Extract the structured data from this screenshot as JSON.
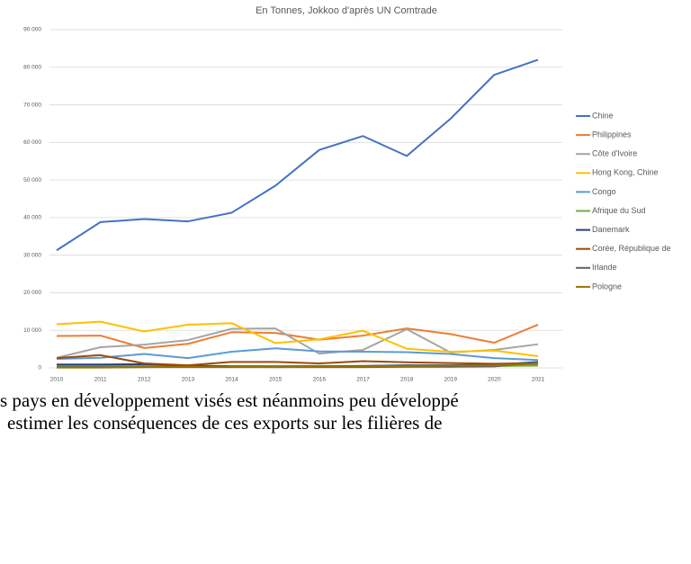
{
  "chart_data": {
    "type": "line",
    "subtitle": "En Tonnes, Jokkoo d'après UN Comtrade",
    "categories": [
      "2010",
      "2011",
      "2012",
      "2013",
      "2014",
      "2015",
      "2016",
      "2017",
      "2018",
      "2019",
      "2020",
      "2021"
    ],
    "series": [
      {
        "name": "Chine",
        "color": "#4472c4",
        "values": [
          31300,
          38800,
          39600,
          39000,
          41300,
          48500,
          58000,
          61700,
          56400,
          66300,
          78000,
          82000
        ]
      },
      {
        "name": "Philippines",
        "color": "#ed7d31",
        "values": [
          8500,
          8600,
          5300,
          6400,
          9500,
          9300,
          7500,
          8600,
          10500,
          9000,
          6700,
          11500
        ]
      },
      {
        "name": "Côte d'Ivoire",
        "color": "#a5a5a5",
        "values": [
          2700,
          5500,
          6200,
          7400,
          10400,
          10500,
          3800,
          4800,
          10300,
          4100,
          4800,
          6300
        ]
      },
      {
        "name": "Hong Kong, Chine",
        "color": "#ffc000",
        "values": [
          11600,
          12300,
          9700,
          11500,
          11900,
          6600,
          7600,
          9900,
          5100,
          4300,
          4600,
          3100
        ]
      },
      {
        "name": "Congo",
        "color": "#5b9bd5",
        "values": [
          2400,
          2700,
          3700,
          2600,
          4300,
          5200,
          4400,
          4300,
          4200,
          3700,
          2600,
          2100
        ]
      },
      {
        "name": "Afrique du Sud",
        "color": "#70ad47",
        "values": [
          500,
          500,
          500,
          500,
          500,
          500,
          500,
          500,
          500,
          500,
          500,
          600
        ]
      },
      {
        "name": "Danemark",
        "color": "#264478",
        "values": [
          900,
          900,
          1000,
          600,
          400,
          300,
          400,
          500,
          700,
          700,
          800,
          1600
        ]
      },
      {
        "name": "Corée, République de",
        "color": "#9e480e",
        "values": [
          2600,
          3400,
          1200,
          700,
          1600,
          1600,
          1200,
          1800,
          1500,
          1300,
          1100,
          1300
        ]
      },
      {
        "name": "Irlande",
        "color": "#636363",
        "values": [
          200,
          200,
          200,
          200,
          200,
          200,
          200,
          200,
          300,
          300,
          400,
          1500
        ]
      },
      {
        "name": "Pologne",
        "color": "#997300",
        "values": [
          100,
          100,
          200,
          300,
          300,
          200,
          300,
          400,
          500,
          600,
          700,
          1100
        ]
      }
    ],
    "ylim": [
      0,
      90000
    ],
    "yticks": [
      0,
      {
        "value": 10000,
        "label": "10 000"
      },
      {
        "value": 20000,
        "label": "20 000"
      },
      {
        "value": 30000,
        "label": "30 000"
      },
      {
        "value": 40000,
        "label": "40 000"
      },
      {
        "value": 50000,
        "label": "50 000"
      },
      {
        "value": 60000,
        "label": "60 000"
      },
      {
        "value": 70000,
        "label": "70 000"
      },
      {
        "value": 80000,
        "label": "80 000"
      },
      {
        "value": 90000,
        "label": "90 000"
      }
    ],
    "grid": true,
    "legend": "right"
  },
  "text_lines": [
    "s pays en développement visés est néanmoins peu développé",
    "estimer les conséquences de ces exports sur les filières de"
  ]
}
